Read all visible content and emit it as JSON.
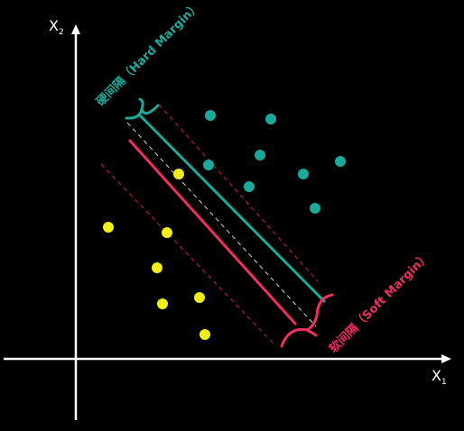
{
  "colors": {
    "background": "#000000",
    "axis": "#ffffff",
    "hard": "#1aa99b",
    "soft": "#ef2f5c",
    "class_a": "#1aa99b",
    "class_b": "#f2ee1c",
    "margin_dash_hard": "#d8d8b8",
    "margin_dash_soft": "#cc2244"
  },
  "axes": {
    "x_label": "X",
    "x_sub": "1",
    "y_label": "X",
    "y_sub": "2"
  },
  "annotations": {
    "hard_margin": "硬间隔（Hard Margin）",
    "soft_margin": "软间隔（Soft Margin）"
  }
}
